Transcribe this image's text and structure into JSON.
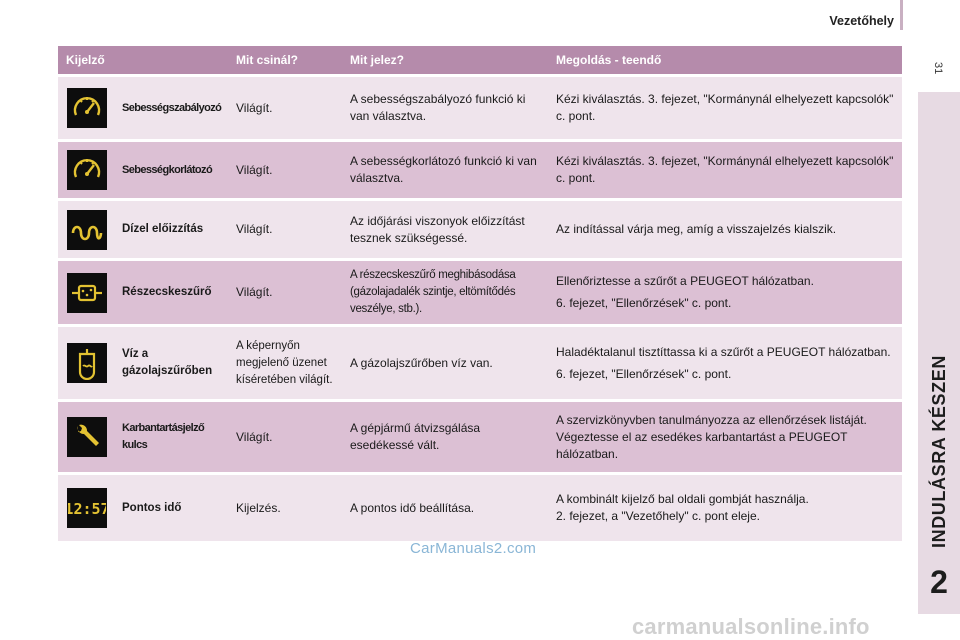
{
  "header": {
    "title": "Vezetőhely",
    "page": "31"
  },
  "side": {
    "section": "INDULÁSRA KÉSZEN",
    "chapter": "2"
  },
  "table": {
    "columns": [
      "Kijelző",
      "Mit csinál?",
      "Mit jelez?",
      "Megoldás - teendő"
    ],
    "rows": [
      {
        "icon": "speed-regulator-icon",
        "name": "Sebességszabályozó",
        "does": "Világít.",
        "means": "A sebességszabályozó funkció ki van választva.",
        "solution": [
          "Kézi kiválasztás. 3. fejezet, \"Kormánynál elhelyezett kapcsolók\" c. pont."
        ]
      },
      {
        "icon": "speed-limiter-icon",
        "name": "Sebességkorlátozó",
        "does": "Világít.",
        "means": "A sebességkorlátozó funkció ki van választva.",
        "solution": [
          "Kézi kiválasztás. 3. fejezet, \"Kormánynál elhelyezett kapcsolók\" c. pont."
        ]
      },
      {
        "icon": "glow-plug-icon",
        "name": "Dízel előizzítás",
        "does": "Világít.",
        "means": "Az időjárási viszonyok előizzítást tesznek szükségessé.",
        "solution": [
          "Az indítással várja meg, amíg a visszajelzés kialszik."
        ]
      },
      {
        "icon": "particle-filter-icon",
        "name": "Részecskeszűrő",
        "does": "Világít.",
        "means": "A részecskeszűrő meghibásodása (gázolajadalék szintje, eltömítődés veszélye, stb.).",
        "solution": [
          "Ellenőriztesse a szűrőt a PEUGEOT hálózatban.",
          "6. fejezet, \"Ellenőrzések\" c. pont."
        ]
      },
      {
        "icon": "water-in-fuel-icon",
        "name": "Víz a gázolajszűrőben",
        "does": "A képernyőn megjelenő üzenet kíséretében világít.",
        "means": "A gázolajszűrőben víz van.",
        "solution": [
          "Haladéktalanul tisztíttassa ki a szűrőt a PEUGEOT hálózatban.",
          "6. fejezet, \"Ellenőrzések\" c. pont."
        ]
      },
      {
        "icon": "service-wrench-icon",
        "name": "Karbantartásjelző kulcs",
        "does": "Világít.",
        "means": "A gépjármű átvizsgálása esedékessé vált.",
        "solution": [
          "A szervizkönyvben tanulmányozza az ellenőrzések listáját. Végeztesse el az esedékes karbantartást a PEUGEOT hálózatban."
        ]
      },
      {
        "icon": "clock-display-icon",
        "name": "Pontos idő",
        "does": "Kijelzés.",
        "means": "A pontos idő beállítása.",
        "solution": [
          "A kombinált kijelző bal oldali gombját használja.",
          "2. fejezet, a \"Vezetőhely\" c. pont eleje."
        ]
      }
    ]
  },
  "clock_value": "12:57",
  "watermarks": [
    "CarManuals2.com",
    "carmanualsonline.info"
  ],
  "colors": {
    "header": "#b58bab",
    "row_light": "#efe4ec",
    "row_dark": "#dcc0d4",
    "side_band": "#e7dae3",
    "icon_amber": "#e3c232"
  }
}
